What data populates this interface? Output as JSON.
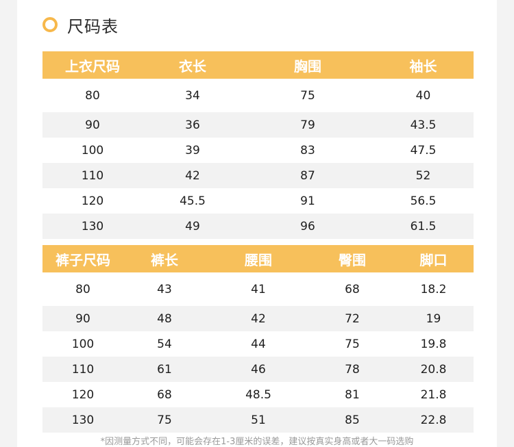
{
  "heading": {
    "title": "尺码表",
    "icon": "ring-icon",
    "accent": "#f7b84b"
  },
  "top_table": {
    "headers": [
      "上衣尺码",
      "衣长",
      "胸围",
      "袖长"
    ],
    "rows": [
      [
        "80",
        "34",
        "75",
        "40"
      ],
      [
        "90",
        "36",
        "79",
        "43.5"
      ],
      [
        "100",
        "39",
        "83",
        "47.5"
      ],
      [
        "110",
        "42",
        "87",
        "52"
      ],
      [
        "120",
        "45.5",
        "91",
        "56.5"
      ],
      [
        "130",
        "49",
        "96",
        "61.5"
      ]
    ]
  },
  "bottom_table": {
    "headers": [
      "裤子尺码",
      "裤长",
      "腰围",
      "臀围",
      "脚口"
    ],
    "rows": [
      [
        "80",
        "43",
        "41",
        "68",
        "18.2"
      ],
      [
        "90",
        "48",
        "42",
        "72",
        "19"
      ],
      [
        "100",
        "54",
        "44",
        "75",
        "19.8"
      ],
      [
        "110",
        "61",
        "46",
        "78",
        "20.8"
      ],
      [
        "120",
        "68",
        "48.5",
        "81",
        "21.8"
      ],
      [
        "130",
        "75",
        "51",
        "85",
        "22.8"
      ]
    ]
  },
  "note": "*因测量方式不同，可能会存在1-3厘米的误差，建议按真实身高或者大一码选购"
}
